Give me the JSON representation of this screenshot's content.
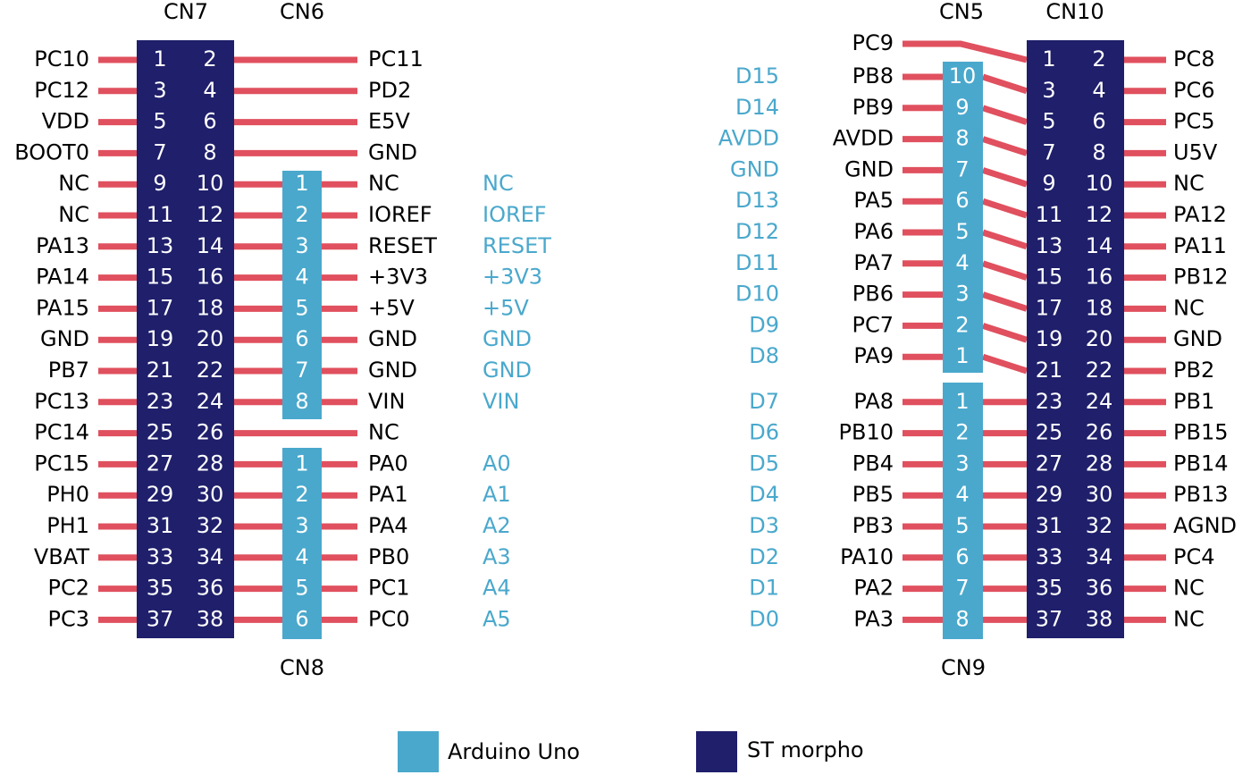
{
  "left": {
    "cn7": "CN7",
    "signals": [
      "PC10",
      "PC12",
      "VDD",
      "BOOT0",
      "NC",
      "NC",
      "PA13",
      "PA14",
      "PA15",
      "GND",
      "PB7",
      "PC13",
      "PC14",
      "PC15",
      "PH0",
      "PH1",
      "VBAT",
      "PC2",
      "PC3"
    ],
    "pins": [
      [
        1,
        2
      ],
      [
        3,
        4
      ],
      [
        5,
        6
      ],
      [
        7,
        8
      ],
      [
        9,
        10
      ],
      [
        11,
        12
      ],
      [
        13,
        14
      ],
      [
        15,
        16
      ],
      [
        17,
        18
      ],
      [
        19,
        20
      ],
      [
        21,
        22
      ],
      [
        23,
        24
      ],
      [
        25,
        26
      ],
      [
        27,
        28
      ],
      [
        29,
        30
      ],
      [
        31,
        32
      ],
      [
        33,
        34
      ],
      [
        35,
        36
      ],
      [
        37,
        38
      ]
    ],
    "outs": [
      "PC11",
      "PD2",
      "E5V",
      "GND",
      "NC",
      "IOREF",
      "RESET",
      "+3V3",
      "+5V",
      "GND",
      "GND",
      "VIN",
      "NC",
      "PA0",
      "PA1",
      "PA4",
      "PB0",
      "PC1",
      "PC0"
    ],
    "cn6": {
      "label": "CN6",
      "pins": [
        1,
        2,
        3,
        4,
        5,
        6,
        7,
        8
      ],
      "arduino": [
        "NC",
        "IOREF",
        "RESET",
        "+3V3",
        "+5V",
        "GND",
        "GND",
        "VIN"
      ]
    },
    "cn8": {
      "label": "CN8",
      "pins": [
        1,
        2,
        3,
        4,
        5,
        6
      ],
      "arduino": [
        "A0",
        "A1",
        "A2",
        "A3",
        "A4",
        "A5"
      ]
    }
  },
  "right": {
    "cn10": "CN10",
    "pins": [
      [
        1,
        2
      ],
      [
        3,
        4
      ],
      [
        5,
        6
      ],
      [
        7,
        8
      ],
      [
        9,
        10
      ],
      [
        11,
        12
      ],
      [
        13,
        14
      ],
      [
        15,
        16
      ],
      [
        17,
        18
      ],
      [
        19,
        20
      ],
      [
        21,
        22
      ],
      [
        23,
        24
      ],
      [
        25,
        26
      ],
      [
        27,
        28
      ],
      [
        29,
        30
      ],
      [
        31,
        32
      ],
      [
        33,
        34
      ],
      [
        35,
        36
      ],
      [
        37,
        38
      ]
    ],
    "outs": [
      "PC8",
      "PC6",
      "PC5",
      "U5V",
      "NC",
      "PA12",
      "PA11",
      "PB12",
      "NC",
      "GND",
      "PB2",
      "PB1",
      "PB15",
      "PB14",
      "PB13",
      "AGND",
      "PC4",
      "NC",
      "NC"
    ],
    "pc9": "PC9",
    "cn5": {
      "label": "CN5",
      "pins": [
        10,
        9,
        8,
        7,
        6,
        5,
        4,
        3,
        2,
        1
      ],
      "signals": [
        "PB8",
        "PB9",
        "AVDD",
        "GND",
        "PA5",
        "PA6",
        "PA7",
        "PB6",
        "PC7",
        "PA9"
      ],
      "arduino": [
        "D15",
        "D14",
        "AVDD",
        "GND",
        "D13",
        "D12",
        "D11",
        "D10",
        "D9",
        "D8"
      ]
    },
    "cn9": {
      "label": "CN9",
      "pins": [
        1,
        2,
        3,
        4,
        5,
        6,
        7,
        8
      ],
      "signals": [
        "PA8",
        "PB10",
        "PB4",
        "PB5",
        "PB3",
        "PA10",
        "PA2",
        "PA3"
      ],
      "arduino": [
        "D7",
        "D6",
        "D5",
        "D4",
        "D3",
        "D2",
        "D1",
        "D0"
      ]
    }
  },
  "legend": {
    "arduino": "Arduino Uno",
    "morpho": "ST morpho"
  }
}
